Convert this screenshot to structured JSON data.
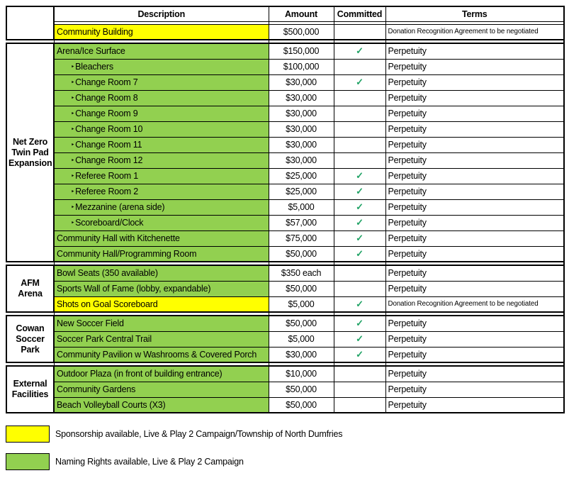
{
  "colors": {
    "green": "#92D050",
    "yellow": "#FFFF00",
    "check": "#21A366",
    "border": "#000000"
  },
  "icons": {
    "check": "✓",
    "bullet": "‣"
  },
  "table": {
    "columns": [
      "Description",
      "Amount",
      "Committed",
      "Terms"
    ],
    "sections": [
      {
        "group": "",
        "rows": [
          {
            "label": "Community Building",
            "indent": false,
            "highlight": "yellow",
            "amount": "$500,000",
            "committed": false,
            "terms": "Donation Recognition Agreement to be negotiated",
            "small_terms": true
          }
        ]
      },
      {
        "group": "Net Zero Twin Pad Expansion",
        "rows": [
          {
            "label": "Arena/Ice Surface",
            "indent": false,
            "highlight": "green",
            "amount": "$150,000",
            "committed": true,
            "terms": "Perpetuity",
            "small_terms": false
          },
          {
            "label": "Bleachers",
            "indent": true,
            "highlight": "green",
            "amount": "$100,000",
            "committed": false,
            "terms": "Perpetuity",
            "small_terms": false
          },
          {
            "label": "Change Room 7",
            "indent": true,
            "highlight": "green",
            "amount": "$30,000",
            "committed": true,
            "terms": "Perpetuity",
            "small_terms": false
          },
          {
            "label": "Change Room 8",
            "indent": true,
            "highlight": "green",
            "amount": "$30,000",
            "committed": false,
            "terms": "Perpetuity",
            "small_terms": false
          },
          {
            "label": "Change Room 9",
            "indent": true,
            "highlight": "green",
            "amount": "$30,000",
            "committed": false,
            "terms": "Perpetuity",
            "small_terms": false
          },
          {
            "label": "Change Room 10",
            "indent": true,
            "highlight": "green",
            "amount": "$30,000",
            "committed": false,
            "terms": "Perpetuity",
            "small_terms": false
          },
          {
            "label": "Change Room 11",
            "indent": true,
            "highlight": "green",
            "amount": "$30,000",
            "committed": false,
            "terms": "Perpetuity",
            "small_terms": false
          },
          {
            "label": "Change Room 12",
            "indent": true,
            "highlight": "green",
            "amount": "$30,000",
            "committed": false,
            "terms": "Perpetuity",
            "small_terms": false
          },
          {
            "label": "Referee Room 1",
            "indent": true,
            "highlight": "green",
            "amount": "$25,000",
            "committed": true,
            "terms": "Perpetuity",
            "small_terms": false
          },
          {
            "label": "Referee Room 2",
            "indent": true,
            "highlight": "green",
            "amount": "$25,000",
            "committed": true,
            "terms": "Perpetuity",
            "small_terms": false
          },
          {
            "label": "Mezzanine (arena side)",
            "indent": true,
            "highlight": "green",
            "amount": "$5,000",
            "committed": true,
            "terms": "Perpetuity",
            "small_terms": false
          },
          {
            "label": "Scoreboard/Clock",
            "indent": true,
            "highlight": "green",
            "amount": "$57,000",
            "committed": true,
            "terms": "Perpetuity",
            "small_terms": false
          },
          {
            "label": "Community Hall with Kitchenette",
            "indent": false,
            "highlight": "green",
            "amount": "$75,000",
            "committed": true,
            "terms": "Perpetuity",
            "small_terms": false
          },
          {
            "label": "Community Hall/Programming Room",
            "indent": false,
            "highlight": "green",
            "amount": "$50,000",
            "committed": true,
            "terms": "Perpetuity",
            "small_terms": false
          }
        ]
      },
      {
        "group": "AFM Arena",
        "rows": [
          {
            "label": "Bowl Seats (350 available)",
            "indent": false,
            "highlight": "green",
            "amount": "$350 each",
            "committed": false,
            "terms": "Perpetuity",
            "small_terms": false
          },
          {
            "label": "Sports Wall of Fame (lobby, expandable)",
            "indent": false,
            "highlight": "green",
            "amount": "$50,000",
            "committed": false,
            "terms": "Perpetuity",
            "small_terms": false
          },
          {
            "label": "Shots on Goal Scoreboard",
            "indent": false,
            "highlight": "yellow",
            "amount": "$5,000",
            "committed": true,
            "terms": "Donation Recognition Agreement to be negotiated",
            "small_terms": true
          }
        ]
      },
      {
        "group": "Cowan Soccer Park",
        "rows": [
          {
            "label": "New Soccer Field",
            "indent": false,
            "highlight": "green",
            "amount": "$50,000",
            "committed": true,
            "terms": "Perpetuity",
            "small_terms": false
          },
          {
            "label": "Soccer Park Central Trail",
            "indent": false,
            "highlight": "green",
            "amount": "$5,000",
            "committed": true,
            "terms": "Perpetuity",
            "small_terms": false
          },
          {
            "label": "Community Pavilion w Washrooms & Covered Porch",
            "indent": false,
            "highlight": "green",
            "amount": "$30,000",
            "committed": true,
            "terms": "Perpetuity",
            "small_terms": false
          }
        ]
      },
      {
        "group": "External Facilities",
        "rows": [
          {
            "label": "Outdoor Plaza (in front of building entrance)",
            "indent": false,
            "highlight": "green",
            "amount": "$10,000",
            "committed": false,
            "terms": "Perpetuity",
            "small_terms": false
          },
          {
            "label": "Community Gardens",
            "indent": false,
            "highlight": "green",
            "amount": "$50,000",
            "committed": false,
            "terms": "Perpetuity",
            "small_terms": false
          },
          {
            "label": "Beach Volleyball Courts (X3)",
            "indent": false,
            "highlight": "green",
            "amount": "$50,000",
            "committed": false,
            "terms": "Perpetuity",
            "small_terms": false
          }
        ]
      }
    ]
  },
  "legend": {
    "items": [
      {
        "swatch": "yellow",
        "color": "#FFFF00",
        "label": "Sponsorship available, Live & Play 2 Campaign/Township of North Dumfries"
      },
      {
        "swatch": "green",
        "color": "#92D050",
        "label": "Naming Rights available, Live & Play 2 Campaign"
      }
    ]
  }
}
